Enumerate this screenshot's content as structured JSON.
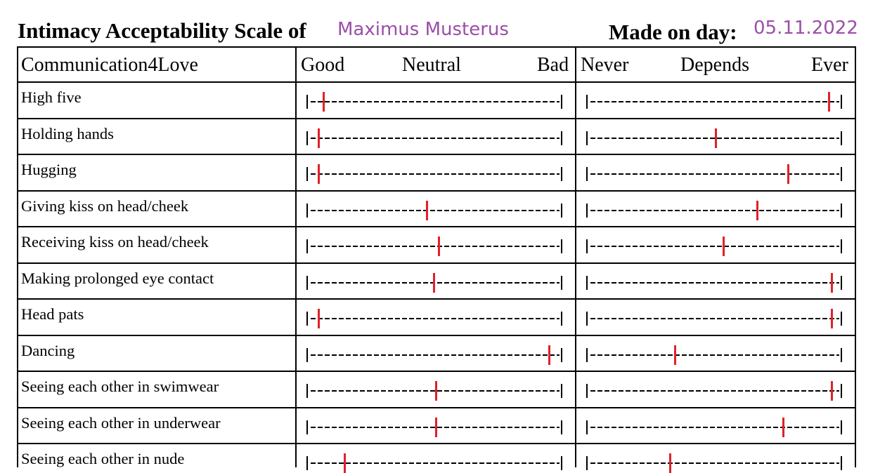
{
  "header": {
    "title": "Intimacy Acceptability Scale of",
    "name": "Maximus Musterus",
    "day_label": "Made on day:",
    "date": "05.11.2022"
  },
  "columns": {
    "activity": "Communication4Love",
    "left": [
      "Good",
      "Neutral",
      "Bad"
    ],
    "right": [
      "Never",
      "Depends",
      "Ever"
    ]
  },
  "colors": {
    "marker": "#e0202a",
    "handwritten": "#9b4ea8"
  },
  "rows": [
    {
      "label": "High five",
      "left": 0.04,
      "right": 0.98
    },
    {
      "label": "Holding hands",
      "left": 0.02,
      "right": 0.51
    },
    {
      "label": "Hugging",
      "left": 0.02,
      "right": 0.81
    },
    {
      "label": "Giving kiss on head/cheek",
      "left": 0.47,
      "right": 0.68
    },
    {
      "label": "Receiving kiss on head/cheek",
      "left": 0.52,
      "right": 0.54
    },
    {
      "label": "Making prolonged eye contact",
      "left": 0.5,
      "right": 0.99
    },
    {
      "label": "Head pats",
      "left": 0.02,
      "right": 0.99
    },
    {
      "label": "Dancing",
      "left": 0.98,
      "right": 0.34
    },
    {
      "label": "Seeing each other in swimwear",
      "left": 0.51,
      "right": 0.99
    },
    {
      "label": "Seeing each other in underwear",
      "left": 0.51,
      "right": 0.79
    },
    {
      "label": "Seeing each other in nude",
      "left": 0.13,
      "right": 0.32
    }
  ]
}
